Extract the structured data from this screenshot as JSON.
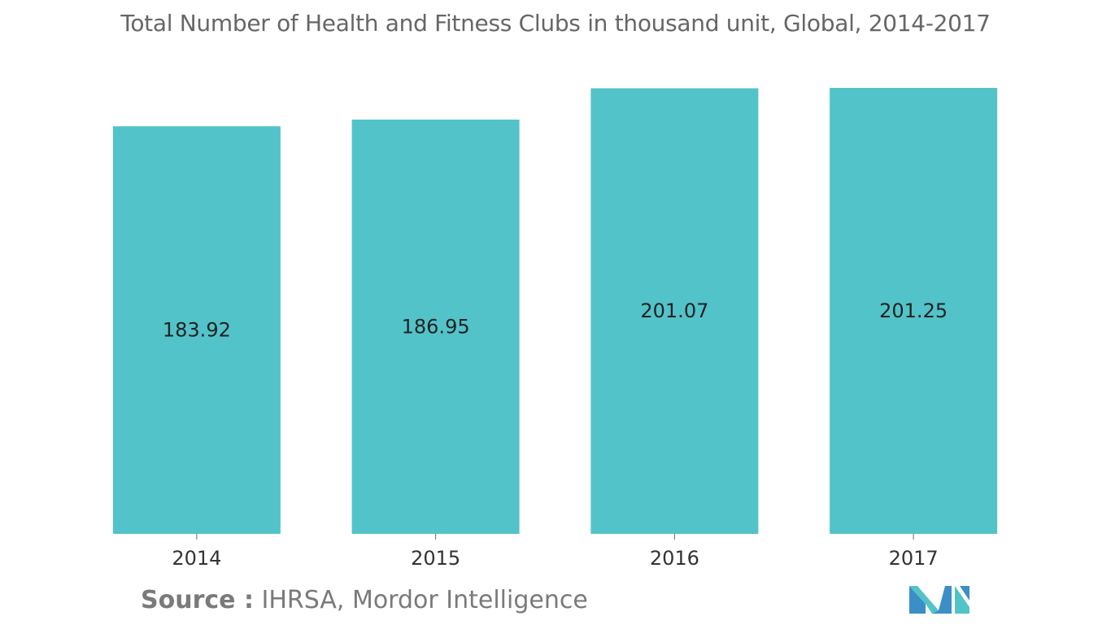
{
  "title": "Total Number of Health and Fitness Clubs in thousand unit, Global, 2014-2017",
  "source": {
    "label": "Source :",
    "text": "IHRSA, Mordor Intelligence"
  },
  "logo": {
    "icon": "mordor-intelligence-logo-icon",
    "colors": [
      "#3b8fc6",
      "#52c3c9"
    ]
  },
  "colors": {
    "bar": "#52c3c9",
    "title": "#666666",
    "source": "#7a7a7a"
  },
  "chart_data": {
    "type": "bar",
    "title": "Total Number of Health and Fitness Clubs in thousand unit, Global, 2014-2017",
    "categories": [
      "2014",
      "2015",
      "2016",
      "2017"
    ],
    "values": [
      183.92,
      186.95,
      201.07,
      201.25
    ],
    "value_labels": [
      "183.92",
      "186.95",
      "201.07",
      "201.25"
    ],
    "xlabel": "",
    "ylabel": "",
    "ylim": [
      0,
      201.25
    ],
    "grid": false,
    "legend": "none",
    "data_labels": "inside-center"
  }
}
